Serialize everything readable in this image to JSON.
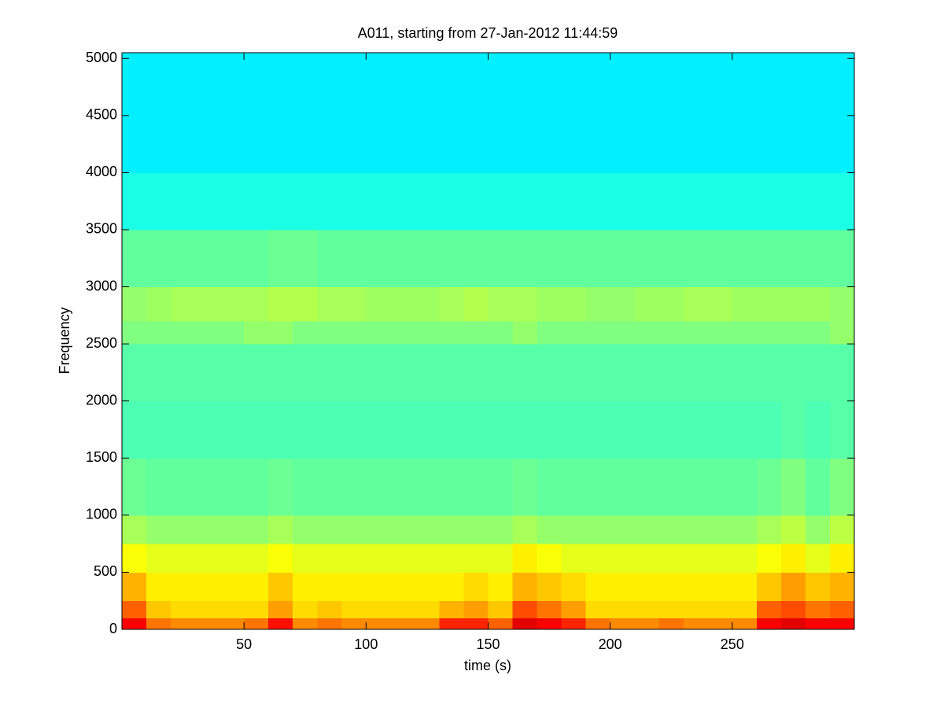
{
  "chart_data": {
    "type": "heatmap",
    "title": "A011, starting from 27-Jan-2012 11:44:59",
    "xlabel": "time (s)",
    "ylabel": "Frequency",
    "xlim": [
      0,
      300
    ],
    "ylim": [
      0,
      5050
    ],
    "xticks": [
      50,
      100,
      150,
      200,
      250
    ],
    "yticks": [
      0,
      500,
      1000,
      1500,
      2000,
      2500,
      3000,
      3500,
      4000,
      4500,
      5000
    ],
    "colormap": "jet",
    "zlim": [
      0,
      1
    ],
    "xbins": [
      0,
      10,
      20,
      30,
      40,
      50,
      60,
      70,
      80,
      90,
      100,
      110,
      120,
      130,
      140,
      150,
      160,
      170,
      180,
      190,
      200,
      210,
      220,
      230,
      240,
      250,
      260,
      270,
      280,
      290,
      300
    ],
    "ybins": [
      0,
      100,
      250,
      500,
      750,
      1000,
      1500,
      2000,
      2500,
      2700,
      3000,
      3500,
      4000,
      5050
    ],
    "z": [
      [
        0.88,
        0.76,
        0.74,
        0.74,
        0.74,
        0.76,
        0.86,
        0.74,
        0.76,
        0.74,
        0.74,
        0.74,
        0.74,
        0.84,
        0.84,
        0.78,
        0.9,
        0.88,
        0.84,
        0.76,
        0.74,
        0.74,
        0.76,
        0.74,
        0.74,
        0.74,
        0.88,
        0.9,
        0.88,
        0.88
      ],
      [
        0.78,
        0.68,
        0.66,
        0.66,
        0.66,
        0.66,
        0.72,
        0.66,
        0.68,
        0.66,
        0.66,
        0.66,
        0.66,
        0.7,
        0.72,
        0.68,
        0.8,
        0.76,
        0.72,
        0.66,
        0.66,
        0.66,
        0.66,
        0.66,
        0.66,
        0.66,
        0.78,
        0.8,
        0.76,
        0.78
      ],
      [
        0.7,
        0.64,
        0.64,
        0.64,
        0.64,
        0.64,
        0.68,
        0.64,
        0.64,
        0.64,
        0.64,
        0.64,
        0.64,
        0.64,
        0.66,
        0.64,
        0.7,
        0.68,
        0.66,
        0.64,
        0.64,
        0.64,
        0.64,
        0.64,
        0.64,
        0.64,
        0.68,
        0.72,
        0.68,
        0.7
      ],
      [
        0.62,
        0.6,
        0.6,
        0.6,
        0.6,
        0.6,
        0.62,
        0.6,
        0.6,
        0.6,
        0.6,
        0.6,
        0.6,
        0.6,
        0.6,
        0.6,
        0.64,
        0.62,
        0.6,
        0.6,
        0.6,
        0.6,
        0.6,
        0.6,
        0.6,
        0.6,
        0.62,
        0.64,
        0.6,
        0.64
      ],
      [
        0.54,
        0.52,
        0.52,
        0.52,
        0.52,
        0.52,
        0.54,
        0.52,
        0.52,
        0.52,
        0.52,
        0.52,
        0.52,
        0.52,
        0.52,
        0.52,
        0.54,
        0.52,
        0.52,
        0.52,
        0.52,
        0.52,
        0.52,
        0.52,
        0.52,
        0.52,
        0.54,
        0.56,
        0.52,
        0.56
      ],
      [
        0.48,
        0.47,
        0.47,
        0.47,
        0.47,
        0.47,
        0.48,
        0.47,
        0.47,
        0.47,
        0.47,
        0.47,
        0.47,
        0.47,
        0.47,
        0.47,
        0.48,
        0.47,
        0.47,
        0.47,
        0.47,
        0.47,
        0.47,
        0.47,
        0.47,
        0.47,
        0.48,
        0.5,
        0.47,
        0.5
      ],
      [
        0.45,
        0.45,
        0.45,
        0.45,
        0.45,
        0.45,
        0.45,
        0.45,
        0.45,
        0.45,
        0.45,
        0.45,
        0.45,
        0.45,
        0.45,
        0.45,
        0.45,
        0.45,
        0.45,
        0.45,
        0.45,
        0.45,
        0.45,
        0.45,
        0.45,
        0.45,
        0.45,
        0.46,
        0.45,
        0.46
      ],
      [
        0.46,
        0.46,
        0.46,
        0.46,
        0.46,
        0.46,
        0.46,
        0.46,
        0.46,
        0.46,
        0.46,
        0.46,
        0.46,
        0.46,
        0.46,
        0.46,
        0.46,
        0.46,
        0.46,
        0.46,
        0.46,
        0.46,
        0.46,
        0.46,
        0.46,
        0.46,
        0.46,
        0.46,
        0.46,
        0.46
      ],
      [
        0.5,
        0.5,
        0.5,
        0.5,
        0.5,
        0.52,
        0.52,
        0.5,
        0.5,
        0.5,
        0.5,
        0.5,
        0.5,
        0.5,
        0.5,
        0.5,
        0.52,
        0.5,
        0.5,
        0.5,
        0.5,
        0.5,
        0.5,
        0.5,
        0.5,
        0.5,
        0.5,
        0.5,
        0.5,
        0.52
      ],
      [
        0.52,
        0.53,
        0.54,
        0.54,
        0.54,
        0.54,
        0.55,
        0.55,
        0.54,
        0.54,
        0.53,
        0.53,
        0.53,
        0.54,
        0.55,
        0.54,
        0.54,
        0.53,
        0.53,
        0.52,
        0.52,
        0.53,
        0.53,
        0.54,
        0.54,
        0.53,
        0.53,
        0.53,
        0.53,
        0.52
      ],
      [
        0.47,
        0.47,
        0.47,
        0.47,
        0.47,
        0.47,
        0.48,
        0.48,
        0.47,
        0.47,
        0.47,
        0.47,
        0.47,
        0.47,
        0.47,
        0.47,
        0.47,
        0.47,
        0.47,
        0.47,
        0.47,
        0.47,
        0.47,
        0.47,
        0.47,
        0.47,
        0.47,
        0.47,
        0.47,
        0.47
      ],
      [
        0.4,
        0.4,
        0.4,
        0.4,
        0.4,
        0.4,
        0.4,
        0.4,
        0.4,
        0.4,
        0.4,
        0.4,
        0.4,
        0.4,
        0.4,
        0.4,
        0.4,
        0.4,
        0.4,
        0.4,
        0.4,
        0.4,
        0.4,
        0.4,
        0.4,
        0.4,
        0.4,
        0.4,
        0.4,
        0.4
      ],
      [
        0.36,
        0.36,
        0.36,
        0.36,
        0.36,
        0.36,
        0.36,
        0.36,
        0.36,
        0.36,
        0.36,
        0.36,
        0.36,
        0.36,
        0.36,
        0.36,
        0.36,
        0.36,
        0.36,
        0.36,
        0.36,
        0.36,
        0.36,
        0.36,
        0.36,
        0.36,
        0.36,
        0.36,
        0.36,
        0.36
      ]
    ]
  }
}
